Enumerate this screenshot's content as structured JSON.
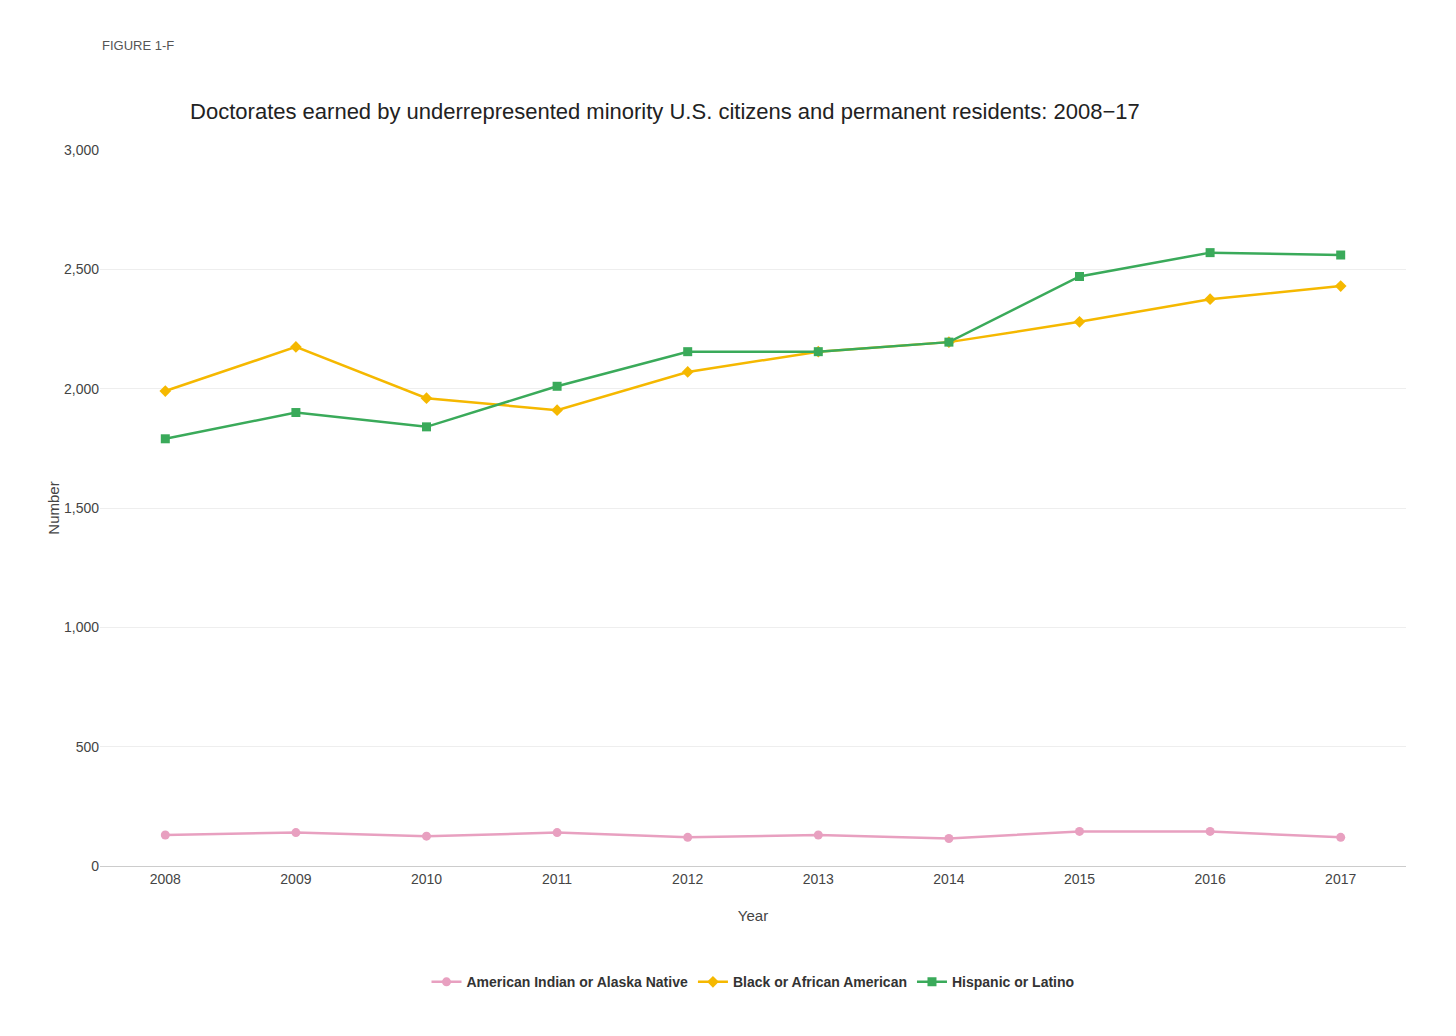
{
  "chart_data": {
    "type": "line",
    "subtitle": "FIGURE 1-F",
    "title": "Doctorates earned by underrepresented minority U.S. citizens and permanent residents: 2008−17",
    "xlabel": "Year",
    "ylabel": "Number",
    "x": [
      2008,
      2009,
      2010,
      2011,
      2012,
      2013,
      2014,
      2015,
      2016,
      2017
    ],
    "series": [
      {
        "name": "American Indian or Alaska Native",
        "color": "#e8a0c0",
        "marker": "circle",
        "values": [
          130,
          140,
          125,
          140,
          120,
          130,
          115,
          145,
          145,
          120
        ]
      },
      {
        "name": "Black or African American",
        "color": "#f5b800",
        "marker": "diamond",
        "values": [
          1990,
          2175,
          1960,
          1910,
          2070,
          2155,
          2195,
          2280,
          2375,
          2430
        ]
      },
      {
        "name": "Hispanic or Latino",
        "color": "#3aaa5a",
        "marker": "square",
        "values": [
          1790,
          1900,
          1840,
          2010,
          2155,
          2155,
          2195,
          2470,
          2570,
          2560
        ]
      }
    ],
    "xlim": [
      2007.5,
      2017.5
    ],
    "xticks": [
      2008,
      2009,
      2010,
      2011,
      2012,
      2013,
      2014,
      2015,
      2016,
      2017
    ],
    "ylim": [
      0,
      3000
    ],
    "yticks": [
      0,
      500,
      {
        "value": 1000,
        "label": "1,000"
      },
      {
        "value": 1500,
        "label": "1,500"
      },
      {
        "value": 2000,
        "label": "2,000"
      },
      {
        "value": 2500,
        "label": "2,500"
      },
      {
        "value": 3000,
        "label": "3,000"
      }
    ],
    "grid": true,
    "legend": "bottom"
  }
}
